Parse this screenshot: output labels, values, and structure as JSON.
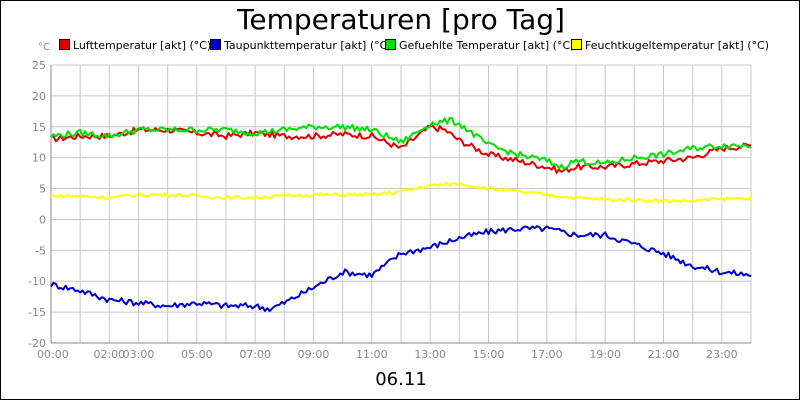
{
  "chart_data": {
    "type": "line",
    "title": "Temperaturen [pro Tag]",
    "unit_label": "°C",
    "date_label": "06.11",
    "x_tick_labels": [
      "00:00",
      "02:00",
      "03:00",
      "05:00",
      "07:00",
      "09:00",
      "11:00",
      "13:00",
      "15:00",
      "17:00",
      "19:00",
      "21:00",
      "23:00"
    ],
    "x_tick_hours": [
      0,
      2,
      3,
      5,
      7,
      9,
      11,
      13,
      15,
      17,
      19,
      21,
      23
    ],
    "x_range_hours": [
      0,
      24
    ],
    "ylim": [
      -20,
      25
    ],
    "y_ticks": [
      25,
      20,
      15,
      10,
      5,
      0,
      -5,
      -10,
      -15,
      -20
    ],
    "grid": true,
    "series": [
      {
        "name": "Lufttemperatur [akt] (°C)",
        "color": "#e00000",
        "x": [
          0,
          1,
          2,
          3,
          4,
          5,
          6,
          7,
          8,
          9,
          10,
          11,
          12,
          13,
          13.5,
          14,
          15,
          16,
          17,
          17.5,
          18,
          19,
          20,
          21,
          22,
          23,
          24
        ],
        "values": [
          13,
          13.5,
          13.5,
          14.5,
          14.5,
          14,
          13.5,
          14,
          13.5,
          13.5,
          13.8,
          13.5,
          11.5,
          15,
          14.5,
          12.8,
          10.5,
          9.5,
          8.5,
          7.8,
          8.5,
          8.5,
          9,
          9.5,
          10,
          11.5,
          12
        ]
      },
      {
        "name": "Taupunkttemperatur [akt] (°C)",
        "color": "#0000cc",
        "x": [
          0,
          1,
          2,
          3,
          4,
          5,
          6,
          7,
          7.5,
          8,
          9,
          10,
          11,
          12,
          13,
          14,
          15,
          16,
          17,
          18,
          19,
          20,
          21,
          22,
          23,
          24
        ],
        "values": [
          -10.5,
          -11.5,
          -13,
          -13.5,
          -14,
          -13.5,
          -14,
          -14,
          -14.5,
          -13.5,
          -11,
          -8.5,
          -9,
          -5.5,
          -4.5,
          -3,
          -2,
          -1.5,
          -1.5,
          -2.5,
          -2.5,
          -4,
          -5.5,
          -7.5,
          -8.5,
          -9
        ]
      },
      {
        "name": "Gefuehlte Temperatur [akt] (°C)",
        "color": "#00e000",
        "x": [
          0,
          1,
          2,
          3,
          4,
          5,
          6,
          7,
          8,
          9,
          10,
          11,
          12,
          13,
          13.7,
          14,
          15,
          16,
          17,
          17.5,
          18,
          19,
          20,
          21,
          22,
          23,
          24
        ],
        "values": [
          13.5,
          14,
          13.5,
          14.5,
          14.5,
          14.5,
          14.5,
          14,
          14.5,
          15,
          15,
          14.5,
          12.5,
          15.5,
          16,
          15.5,
          12,
          10.5,
          9.5,
          8.5,
          9.5,
          9,
          10,
          10.5,
          11.5,
          12,
          12
        ]
      },
      {
        "name": "Feuchtkugeltemperatur [akt] (°C)",
        "color": "#ffff00",
        "x": [
          0,
          1,
          2,
          3,
          4,
          5,
          6,
          7,
          8,
          9,
          10,
          11,
          12,
          13,
          14,
          15,
          16,
          17,
          18,
          19,
          20,
          21,
          22,
          23,
          24
        ],
        "values": [
          3.8,
          3.8,
          3.5,
          4,
          4,
          3.8,
          3.5,
          3.6,
          3.8,
          4,
          4,
          4,
          4.5,
          5.5,
          5.8,
          5,
          4.5,
          4,
          3.5,
          3.2,
          3.2,
          3,
          3,
          3.3,
          3.5
        ]
      }
    ]
  }
}
